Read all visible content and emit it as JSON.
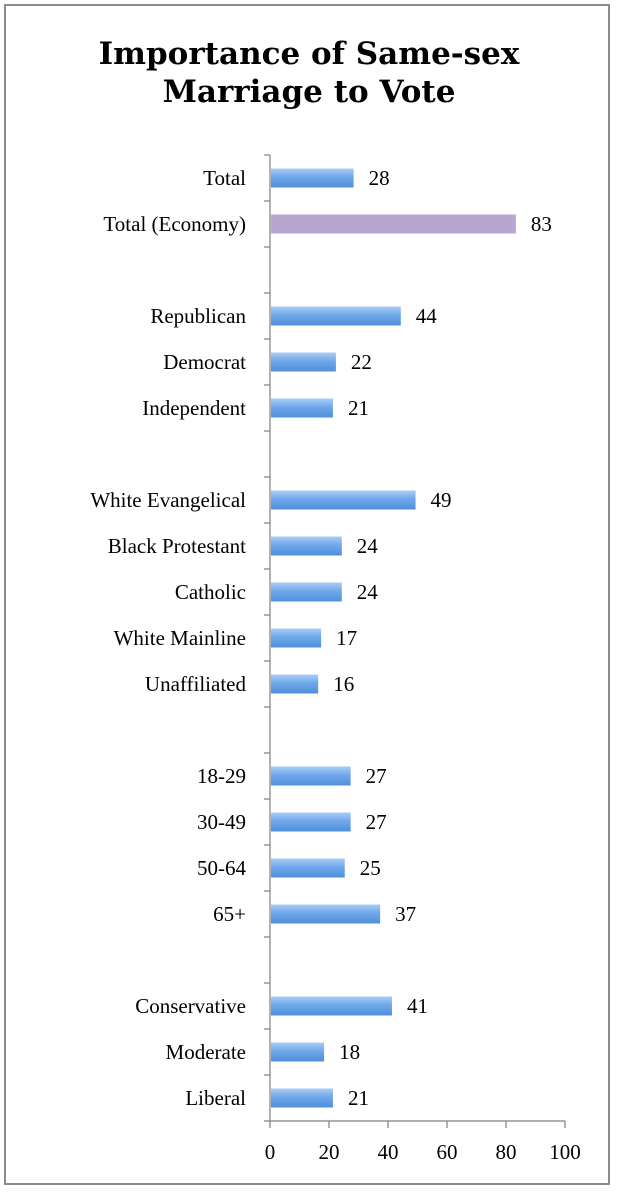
{
  "chart_data": {
    "type": "bar",
    "orientation": "horizontal",
    "title_lines": [
      "Importance of Same-sex",
      "Marriage to Vote"
    ],
    "categories": [
      "Total",
      "Total (Economy)",
      "",
      "Republican",
      "Democrat",
      "Independent",
      "",
      "White Evangelical",
      "Black Protestant",
      "Catholic",
      "White Mainline",
      "Unaffiliated",
      "",
      "18-29",
      "30-49",
      "50-64",
      "65+",
      "",
      "Conservative",
      "Moderate",
      "Liberal"
    ],
    "values": [
      28,
      83,
      null,
      44,
      22,
      21,
      null,
      49,
      24,
      24,
      17,
      16,
      null,
      27,
      27,
      25,
      37,
      null,
      41,
      18,
      21
    ],
    "highlight_index": 1,
    "xlim": [
      0,
      100
    ],
    "xticks": [
      0,
      20,
      40,
      60,
      80,
      100
    ],
    "data_labels": true,
    "grid": false,
    "legend": "none",
    "colors": {
      "bar": "#6fa8ea",
      "bar_light": "#a9cdf6",
      "bar_dark": "#4f8fdc",
      "highlight": "#b8a6d0",
      "axis": "#7f7f7f",
      "frame": "#8c8c8c"
    }
  }
}
